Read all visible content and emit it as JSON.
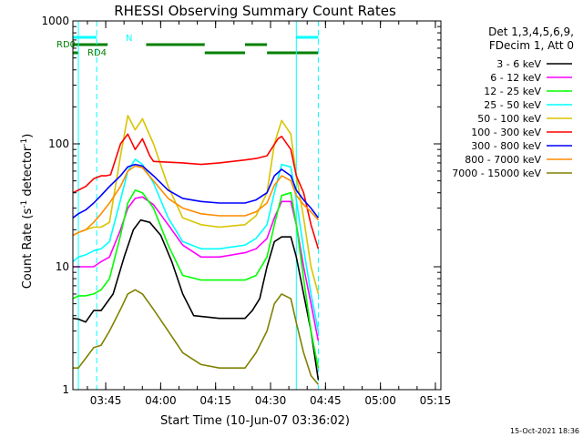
{
  "chart_data": {
    "type": "line",
    "title": "RHESSI Observing Summary Count Rates",
    "xlabel": "Start Time (10-Jun-07 03:36:02)",
    "ylabel_main": "Count Rate (s",
    "ylabel_sup": "-1",
    "ylabel_mid": " detector",
    "ylabel_end": ")",
    "yscale": "log",
    "ylim": [
      1,
      1000
    ],
    "xlim": [
      "03:36:02",
      "05:16:30"
    ],
    "y_ticks": [
      {
        "value": 1,
        "label": "1"
      },
      {
        "value": 10,
        "label": "10"
      },
      {
        "value": 100,
        "label": "100"
      },
      {
        "value": 1000,
        "label": "1000"
      }
    ],
    "x_ticks": [
      {
        "value": "03:45",
        "label": "03:45"
      },
      {
        "value": "04:00",
        "label": "04:00"
      },
      {
        "value": "04:15",
        "label": "04:15"
      },
      {
        "value": "04:30",
        "label": "04:30"
      },
      {
        "value": "04:45",
        "label": "04:45"
      },
      {
        "value": "05:00",
        "label": "05:00"
      },
      {
        "value": "05:15",
        "label": "05:15"
      }
    ],
    "legend_header": [
      "Det 1,3,4,5,6,9,",
      "FDecim 1, Att 0"
    ],
    "legend_placement": "right",
    "series": [
      {
        "name": "3 - 6 keV",
        "color": "#000000",
        "values": [
          [
            3.8,
            0
          ],
          [
            3.75,
            1.5
          ],
          [
            3.55,
            3.5
          ],
          [
            4.4,
            5.7
          ],
          [
            4.4,
            7.7
          ],
          [
            6,
            11
          ],
          [
            12,
            14
          ],
          [
            20,
            16.5
          ],
          [
            24,
            18.5
          ],
          [
            23,
            21
          ],
          [
            18,
            24
          ],
          [
            11,
            27
          ],
          [
            6,
            30
          ],
          [
            4,
            33
          ],
          [
            3.8,
            40
          ],
          [
            3.8,
            47
          ],
          [
            4.4,
            49
          ],
          [
            5.5,
            51
          ],
          [
            10,
            53
          ],
          [
            16,
            55
          ],
          [
            17.5,
            57
          ],
          [
            17.5,
            59.5
          ],
          [
            12,
            61
          ],
          [
            6,
            63
          ],
          [
            3,
            65
          ],
          [
            1.2,
            67
          ]
        ]
      },
      {
        "name": "6 - 12 keV",
        "color": "#ff00ff",
        "values": [
          [
            10,
            0
          ],
          [
            10,
            1.5
          ],
          [
            10,
            3.5
          ],
          [
            10,
            5.7
          ],
          [
            11,
            7.7
          ],
          [
            12,
            10
          ],
          [
            20,
            13
          ],
          [
            30,
            15
          ],
          [
            36,
            17
          ],
          [
            37,
            19
          ],
          [
            32,
            22
          ],
          [
            22,
            26
          ],
          [
            15,
            30
          ],
          [
            12,
            35
          ],
          [
            12,
            40
          ],
          [
            13,
            47
          ],
          [
            14,
            50
          ],
          [
            17,
            53
          ],
          [
            25,
            55
          ],
          [
            34,
            57
          ],
          [
            34,
            59.5
          ],
          [
            22,
            61
          ],
          [
            10,
            63
          ],
          [
            5,
            65
          ],
          [
            2.5,
            67
          ]
        ]
      },
      {
        "name": "12 - 25 keV",
        "color": "#00ff00",
        "values": [
          [
            5.5,
            0
          ],
          [
            5.8,
            1.5
          ],
          [
            5.8,
            3.5
          ],
          [
            6,
            5.7
          ],
          [
            6.5,
            7.7
          ],
          [
            8,
            10
          ],
          [
            18,
            13
          ],
          [
            33,
            15
          ],
          [
            42,
            17
          ],
          [
            40,
            19
          ],
          [
            30,
            22
          ],
          [
            15,
            26
          ],
          [
            8.5,
            30
          ],
          [
            7.8,
            35
          ],
          [
            7.8,
            40
          ],
          [
            7.8,
            47
          ],
          [
            8.5,
            50
          ],
          [
            12,
            53
          ],
          [
            22,
            55
          ],
          [
            38,
            57
          ],
          [
            40,
            59.5
          ],
          [
            22,
            61
          ],
          [
            8,
            63
          ],
          [
            3,
            65
          ],
          [
            1.5,
            67
          ]
        ]
      },
      {
        "name": "25 - 50 keV",
        "color": "#00ffff",
        "values": [
          [
            11,
            0
          ],
          [
            12,
            1.5
          ],
          [
            12.5,
            3.5
          ],
          [
            13.5,
            5.7
          ],
          [
            14,
            7.7
          ],
          [
            16,
            10
          ],
          [
            35,
            13
          ],
          [
            60,
            15
          ],
          [
            75,
            17
          ],
          [
            68,
            19
          ],
          [
            48,
            22
          ],
          [
            25,
            26
          ],
          [
            16,
            30
          ],
          [
            14,
            35
          ],
          [
            14,
            40
          ],
          [
            15,
            47
          ],
          [
            17,
            50
          ],
          [
            22,
            53
          ],
          [
            40,
            55
          ],
          [
            68,
            57
          ],
          [
            65,
            59.5
          ],
          [
            35,
            61
          ],
          [
            14,
            63
          ],
          [
            6,
            65
          ],
          [
            3,
            67
          ]
        ]
      },
      {
        "name": "50 - 100 keV",
        "color": "#d8c400",
        "values": [
          [
            18,
            0
          ],
          [
            19,
            1.5
          ],
          [
            20,
            3.5
          ],
          [
            21,
            5.7
          ],
          [
            21,
            7.7
          ],
          [
            23,
            10
          ],
          [
            80,
            13
          ],
          [
            170,
            15
          ],
          [
            130,
            17
          ],
          [
            160,
            19
          ],
          [
            100,
            22
          ],
          [
            45,
            26
          ],
          [
            25,
            30
          ],
          [
            22,
            35
          ],
          [
            21,
            40
          ],
          [
            22,
            47
          ],
          [
            26,
            50
          ],
          [
            40,
            53
          ],
          [
            100,
            55
          ],
          [
            155,
            57
          ],
          [
            120,
            59.5
          ],
          [
            55,
            61
          ],
          [
            25,
            63
          ],
          [
            10,
            65
          ],
          [
            6,
            67
          ]
        ]
      },
      {
        "name": "100 - 300 keV",
        "color": "#ff0000",
        "values": [
          [
            40,
            0
          ],
          [
            42,
            1.5
          ],
          [
            45,
            3.5
          ],
          [
            52,
            5.7
          ],
          [
            55,
            7.7
          ],
          [
            55,
            9
          ],
          [
            56,
            10.3
          ],
          [
            100,
            13
          ],
          [
            120,
            15
          ],
          [
            90,
            17
          ],
          [
            110,
            19
          ],
          [
            80,
            21
          ],
          [
            72,
            22
          ],
          [
            70,
            30
          ],
          [
            68,
            35
          ],
          [
            70,
            40
          ],
          [
            74,
            47
          ],
          [
            76,
            50
          ],
          [
            80,
            53
          ],
          [
            110,
            56
          ],
          [
            115,
            57
          ],
          [
            90,
            59.5
          ],
          [
            55,
            61
          ],
          [
            40,
            63
          ],
          [
            22,
            65
          ],
          [
            14,
            67
          ]
        ]
      },
      {
        "name": "300 - 800 keV",
        "color": "#0000ff",
        "values": [
          [
            25,
            0
          ],
          [
            27,
            1.5
          ],
          [
            29,
            3.5
          ],
          [
            33,
            5.7
          ],
          [
            38,
            7.7
          ],
          [
            45,
            10
          ],
          [
            55,
            13
          ],
          [
            65,
            15
          ],
          [
            68,
            17
          ],
          [
            66,
            19
          ],
          [
            55,
            22
          ],
          [
            42,
            26
          ],
          [
            36,
            30
          ],
          [
            34,
            35
          ],
          [
            33,
            40
          ],
          [
            33,
            47
          ],
          [
            35,
            50
          ],
          [
            40,
            53
          ],
          [
            55,
            55
          ],
          [
            62,
            57
          ],
          [
            55,
            59.5
          ],
          [
            42,
            61
          ],
          [
            35,
            63
          ],
          [
            30,
            65
          ],
          [
            25,
            67
          ]
        ]
      },
      {
        "name": "800 - 7000 keV",
        "color": "#ff8c00",
        "values": [
          [
            18,
            0
          ],
          [
            19,
            1.5
          ],
          [
            20,
            3.5
          ],
          [
            23,
            5.7
          ],
          [
            27,
            7.7
          ],
          [
            33,
            10
          ],
          [
            45,
            13
          ],
          [
            60,
            15
          ],
          [
            66,
            17
          ],
          [
            64,
            19
          ],
          [
            50,
            22
          ],
          [
            36,
            26
          ],
          [
            30,
            30
          ],
          [
            27,
            35
          ],
          [
            26,
            40
          ],
          [
            26,
            47
          ],
          [
            28,
            50
          ],
          [
            33,
            53
          ],
          [
            46,
            55
          ],
          [
            55,
            57
          ],
          [
            50,
            59.5
          ],
          [
            38,
            61
          ],
          [
            32,
            63
          ],
          [
            28,
            65
          ],
          [
            24,
            67
          ]
        ]
      },
      {
        "name": "7000 - 15000 keV",
        "color": "#808000",
        "values": [
          [
            1.5,
            0
          ],
          [
            1.5,
            1.5
          ],
          [
            1.8,
            3.5
          ],
          [
            2.2,
            5.7
          ],
          [
            2.3,
            7.7
          ],
          [
            3,
            10
          ],
          [
            4.5,
            13
          ],
          [
            6,
            15
          ],
          [
            6.5,
            17
          ],
          [
            6,
            19
          ],
          [
            4.5,
            22
          ],
          [
            3,
            26
          ],
          [
            2,
            30
          ],
          [
            1.6,
            35
          ],
          [
            1.5,
            40
          ],
          [
            1.5,
            47
          ],
          [
            2,
            50
          ],
          [
            3,
            53
          ],
          [
            5,
            55
          ],
          [
            6,
            57
          ],
          [
            5.5,
            59.5
          ],
          [
            3.5,
            61
          ],
          [
            2,
            63
          ],
          [
            1.3,
            65
          ],
          [
            1.1,
            67
          ]
        ]
      }
    ],
    "flag_labels": {
      "rd0": "RD0",
      "rd4": "RD4",
      "n": "N"
    },
    "saa_bars": [
      [
        0,
        6.5
      ],
      [
        61,
        67
      ]
    ],
    "night_bars": [
      [
        0,
        9.5
      ],
      [
        20,
        36
      ],
      [
        47,
        53
      ]
    ],
    "rd4_bars": [
      [
        0,
        1.5
      ]
    ],
    "timestamp": "15-Oct-2021 18:36"
  }
}
